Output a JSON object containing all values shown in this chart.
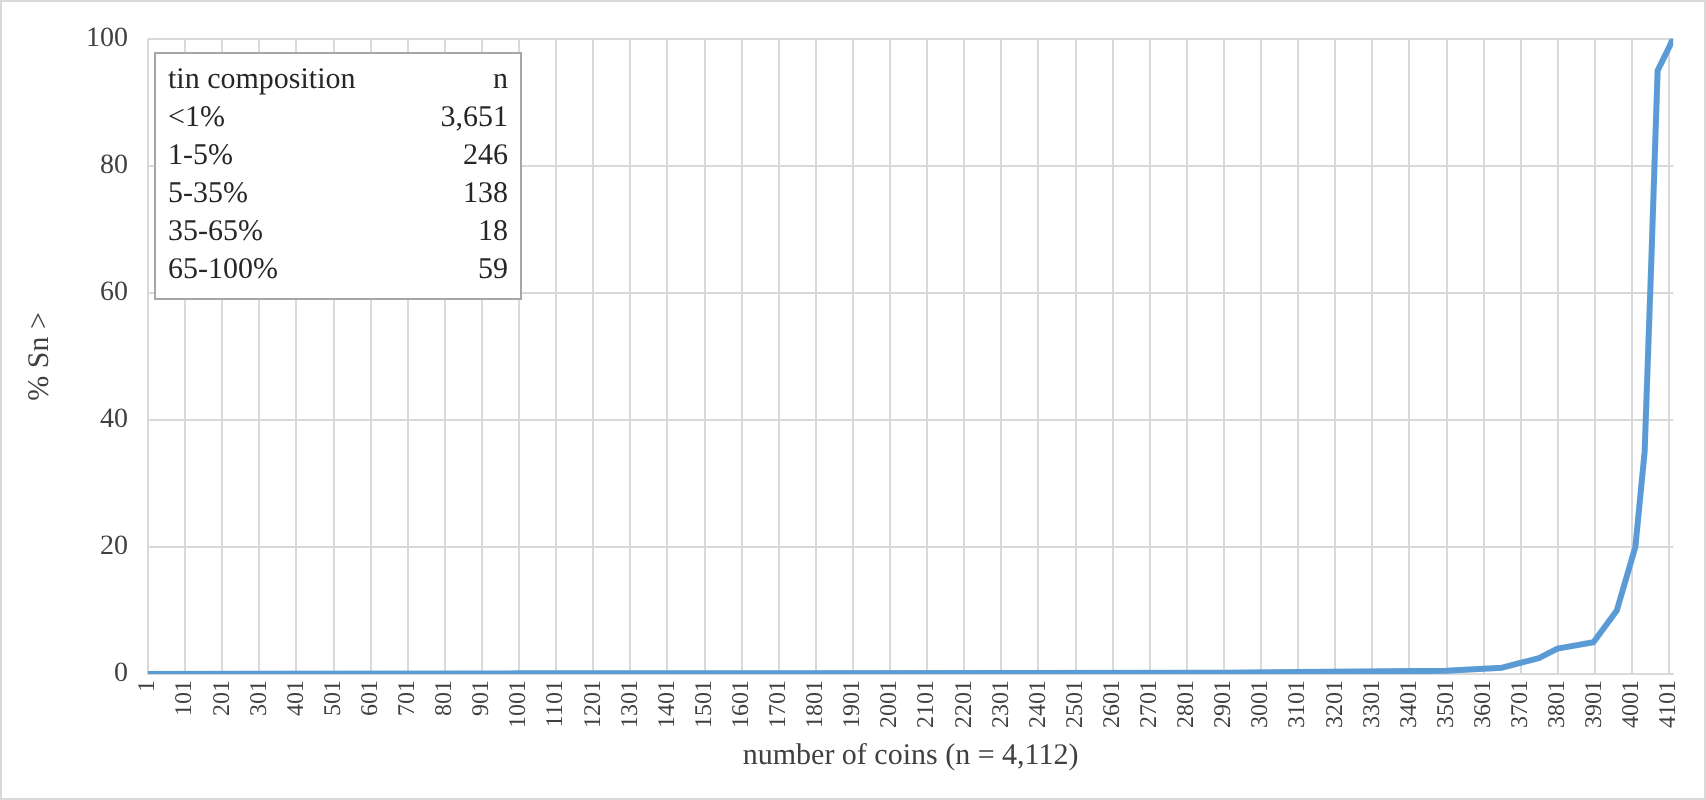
{
  "chart_data": {
    "type": "line",
    "xlabel": "number of coins (n = 4,112)",
    "ylabel": "% Sn >",
    "x": [
      1,
      1001,
      2901,
      3501,
      3651,
      3750,
      3800,
      3897,
      3960,
      4010,
      4035,
      4053,
      4070,
      4112
    ],
    "series": [
      {
        "color": "#5b9bd5",
        "values": [
          0,
          0.1,
          0.2,
          0.5,
          1,
          2.5,
          4,
          5,
          10,
          20,
          35,
          65,
          95,
          100
        ]
      }
    ],
    "xlim": [
      1,
      4112
    ],
    "xticks": [
      1,
      101,
      201,
      301,
      401,
      501,
      601,
      701,
      801,
      901,
      1001,
      1101,
      1201,
      1301,
      1401,
      1501,
      1601,
      1701,
      1801,
      1901,
      2001,
      2101,
      2201,
      2301,
      2401,
      2501,
      2601,
      2701,
      2801,
      2901,
      3001,
      3101,
      3201,
      3301,
      3401,
      3501,
      3601,
      3701,
      3801,
      3901,
      4001,
      4101
    ],
    "ylim": [
      0,
      100
    ],
    "yticks": [
      0,
      20,
      40,
      60,
      80,
      100
    ],
    "grid": true,
    "legend": false,
    "marker": "none",
    "line_style": "solid",
    "annotations": [
      "tin composition",
      "n",
      "<1%",
      "3,651",
      "1-5%",
      "246",
      "5-35%",
      "138",
      "35-65%",
      "18",
      "65-100%",
      "59"
    ]
  }
}
